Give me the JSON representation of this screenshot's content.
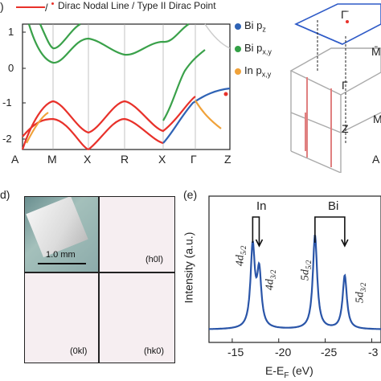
{
  "panel_labels": {
    "top_left": ")",
    "mid_left": "d)",
    "mid_right": "(e)"
  },
  "band_plot": {
    "legend_line": "Dirac Nodal Line / Type II Dirac Point",
    "orbitals": [
      {
        "label_base": "Bi p",
        "label_sub": "z",
        "color": "#2f63b5"
      },
      {
        "label_base": "Bi p",
        "label_sub": "x,y",
        "color": "#33a046"
      },
      {
        "label_base": "In p",
        "label_sub": "x,y",
        "color": "#f0a23a"
      }
    ],
    "yticks": [
      "1",
      "0",
      "-1",
      "-2"
    ],
    "kpoints": [
      "A",
      "M",
      "X",
      "R",
      "X",
      "Γ",
      "Z"
    ],
    "colors": {
      "red": "#e8312a",
      "green": "#3aa14a",
      "blue": "#2f63b5",
      "orange": "#f0a23a"
    }
  },
  "bz": {
    "labels": [
      "Γ̄",
      "M̄",
      "Γ",
      "M",
      "Z",
      "A"
    ]
  },
  "laue": {
    "scale_label": "1.0 mm",
    "panels": [
      "(h0l)",
      "(0kl)",
      "(hk0)"
    ]
  },
  "chart_data": {
    "type": "line",
    "title": "",
    "xlabel": "E-E",
    "xlabel_sub": "F",
    "xlabel_unit": " (eV)",
    "ylabel": "Intensity (a.u.)",
    "xticks": [
      "-15",
      "-20",
      "-25",
      "-3"
    ],
    "xlim": [
      -12.5,
      -31
    ],
    "peaks": [
      {
        "x": -17.2,
        "height": 0.62,
        "label": "4d",
        "sub": "5/2"
      },
      {
        "x": -17.9,
        "height": 0.42,
        "label": "4d",
        "sub": "3/2"
      },
      {
        "x": -23.9,
        "height": 0.72,
        "label": "5d",
        "sub": "5/2"
      },
      {
        "x": -27.1,
        "height": 0.41,
        "label": "5d",
        "sub": "3/2"
      }
    ],
    "group_labels": [
      {
        "name": "In",
        "from": -17.2,
        "to": -17.9
      },
      {
        "name": "Bi",
        "from": -23.9,
        "to": -27.1
      }
    ],
    "color": "#2a55a8"
  }
}
